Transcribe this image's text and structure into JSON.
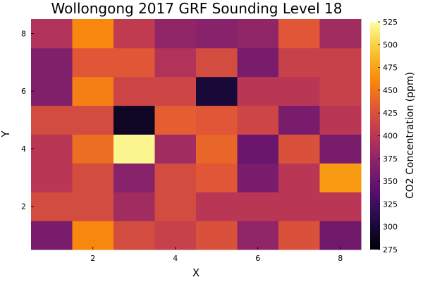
{
  "chart_data": {
    "type": "heatmap",
    "title": "Wollongong 2017 GRF Sounding Level 18",
    "xlabel": "X",
    "ylabel": "Y",
    "colorbar_label": "CO2 Concentration (ppm)",
    "x": [
      1,
      2,
      3,
      4,
      5,
      6,
      7,
      8
    ],
    "y": [
      1,
      2,
      3,
      4,
      5,
      6,
      7,
      8
    ],
    "x_ticks": [
      2,
      4,
      6,
      8
    ],
    "y_ticks": [
      2,
      4,
      6,
      8
    ],
    "clim": [
      275,
      525
    ],
    "colorbar_ticks": [
      275,
      300,
      325,
      350,
      375,
      400,
      425,
      450,
      475,
      500,
      525
    ],
    "colormap": "inferno",
    "z": [
      [
        360,
        460,
        420,
        410,
        425,
        375,
        425,
        355
      ],
      [
        420,
        420,
        385,
        420,
        400,
        400,
        400,
        400
      ],
      [
        400,
        420,
        370,
        420,
        430,
        360,
        400,
        470
      ],
      [
        400,
        445,
        520,
        385,
        440,
        350,
        425,
        360
      ],
      [
        420,
        420,
        290,
        435,
        430,
        415,
        360,
        400
      ],
      [
        365,
        455,
        415,
        415,
        300,
        400,
        400,
        410
      ],
      [
        365,
        430,
        430,
        395,
        420,
        360,
        410,
        410
      ],
      [
        395,
        460,
        405,
        375,
        370,
        375,
        430,
        385
      ]
    ]
  }
}
